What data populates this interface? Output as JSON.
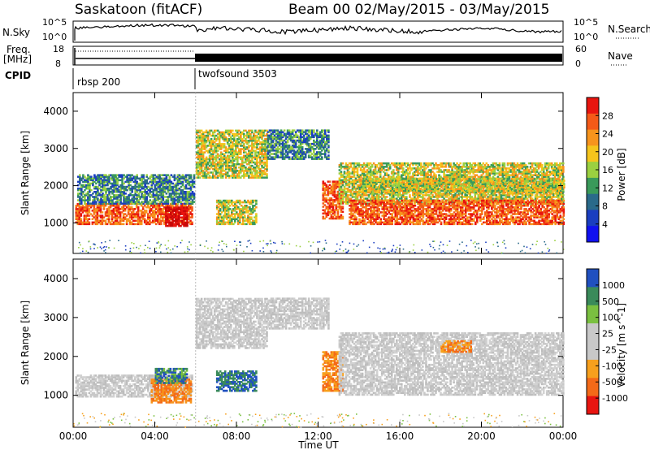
{
  "header": {
    "title": "Saskatoon (fitACF)",
    "subtitle": "Beam 00  02/May/2015 - 03/May/2015"
  },
  "top_strip": {
    "nsky_label": "N.Sky",
    "nsky_ticks": [
      "10^5",
      "10^0"
    ],
    "nsearch_label": "N.Search",
    "nsearch_ticks": [
      "10^5",
      "10^0"
    ],
    "freq_label_1": "Freq.",
    "freq_label_2": "[MHz]",
    "freq_ticks": [
      "18",
      "8"
    ],
    "nave_label": "Nave",
    "nave_ticks": [
      "60",
      "0"
    ],
    "cpid_label": "CPID",
    "cpid_segments": [
      "rbsp 200",
      "twofsound 3503"
    ]
  },
  "chart_data": [
    {
      "type": "heatmap",
      "name": "power",
      "ylabel": "Slant Range [km]",
      "yticks": [
        "4000",
        "3000",
        "2000",
        "1000"
      ],
      "xticks": [
        "00:00",
        "04:00",
        "08:00",
        "12:00",
        "16:00",
        "20:00",
        "00:00"
      ],
      "xlim_hours": [
        0,
        24
      ],
      "ylim_km": [
        180,
        4500
      ],
      "colorbar": {
        "label": "Power [dB]",
        "ticks": [
          "28",
          "24",
          "20",
          "16",
          "12",
          "8",
          "4"
        ],
        "colors": [
          "#e8150f",
          "#f45a18",
          "#f7941d",
          "#f5c51c",
          "#9bd040",
          "#3a9a5a",
          "#2a6a8a",
          "#1a3ec0",
          "#1010f0"
        ]
      },
      "echo_regions": [
        {
          "t": [
            0.1,
            5.8
          ],
          "r": [
            950,
            1500
          ],
          "level": "high"
        },
        {
          "t": [
            4.5,
            5.6
          ],
          "r": [
            900,
            1400
          ],
          "level": "very-high"
        },
        {
          "t": [
            0.2,
            5.9
          ],
          "r": [
            1500,
            2300
          ],
          "level": "low"
        },
        {
          "t": [
            6.0,
            9.5
          ],
          "r": [
            2200,
            3500
          ],
          "level": "mid"
        },
        {
          "t": [
            7.0,
            9.0
          ],
          "r": [
            950,
            1600
          ],
          "level": "mid"
        },
        {
          "t": [
            9.5,
            12.5
          ],
          "r": [
            2700,
            3500
          ],
          "level": "low"
        },
        {
          "t": [
            12.2,
            13.2
          ],
          "r": [
            1100,
            2100
          ],
          "level": "high"
        },
        {
          "t": [
            13.0,
            24.0
          ],
          "r": [
            1500,
            2600
          ],
          "level": "mid"
        },
        {
          "t": [
            13.5,
            24.0
          ],
          "r": [
            950,
            1600
          ],
          "level": "high"
        },
        {
          "t": [
            14.0,
            24.0
          ],
          "r": [
            1800,
            2200
          ],
          "level": "mid"
        }
      ]
    },
    {
      "type": "heatmap",
      "name": "velocity",
      "ylabel": "Slant Range [km]",
      "yticks": [
        "4000",
        "3000",
        "2000",
        "1000"
      ],
      "xticks": [
        "00:00",
        "04:00",
        "08:00",
        "12:00",
        "16:00",
        "20:00",
        "00:00"
      ],
      "xlabel": "Time UT",
      "xlim_hours": [
        0,
        24
      ],
      "ylim_km": [
        180,
        4500
      ],
      "colorbar": {
        "label": "Velocity [m s^-1]",
        "ticks": [
          "1000",
          "500",
          "100",
          "25",
          "-25",
          "-100",
          "-500",
          "-1000"
        ],
        "colors": [
          "#2050c0",
          "#3a8a5a",
          "#7ac040",
          "#c8c8c8",
          "#c8c8c8",
          "#f7a01d",
          "#f46a18",
          "#e81510"
        ]
      },
      "echo_regions": [
        {
          "t": [
            0.1,
            5.8
          ],
          "r": [
            950,
            1500
          ],
          "level": "ground"
        },
        {
          "t": [
            3.8,
            5.8
          ],
          "r": [
            800,
            1400
          ],
          "level": "-500"
        },
        {
          "t": [
            4.0,
            5.6
          ],
          "r": [
            1300,
            1700
          ],
          "level": "100"
        },
        {
          "t": [
            6.0,
            9.5
          ],
          "r": [
            2200,
            3500
          ],
          "level": "ground"
        },
        {
          "t": [
            7.0,
            9.0
          ],
          "r": [
            1100,
            1600
          ],
          "level": "500"
        },
        {
          "t": [
            9.5,
            12.5
          ],
          "r": [
            2700,
            3500
          ],
          "level": "ground"
        },
        {
          "t": [
            12.2,
            13.2
          ],
          "r": [
            1100,
            2100
          ],
          "level": "-100"
        },
        {
          "t": [
            13.0,
            24.0
          ],
          "r": [
            1000,
            2600
          ],
          "level": "ground"
        },
        {
          "t": [
            18.0,
            19.5
          ],
          "r": [
            2100,
            2400
          ],
          "level": "-100"
        }
      ]
    }
  ]
}
